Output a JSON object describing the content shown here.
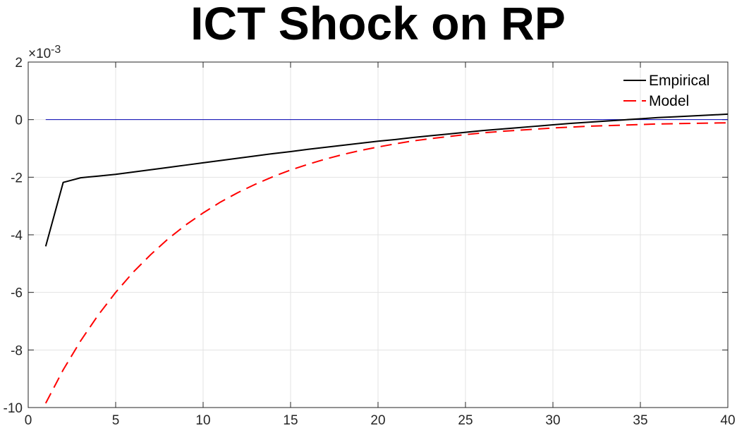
{
  "chart_data": {
    "type": "line",
    "title": "ICT Shock on RP",
    "xlabel": "",
    "ylabel": "",
    "xlim": [
      0,
      40
    ],
    "ylim": [
      -10,
      2
    ],
    "x_ticks": [
      0,
      5,
      10,
      15,
      20,
      25,
      30,
      35,
      40
    ],
    "y_ticks": [
      -10,
      -8,
      -6,
      -4,
      -2,
      0,
      2
    ],
    "y_tick_labels": [
      "-10",
      "-8",
      "-6",
      "-4",
      "-2",
      "0",
      "2"
    ],
    "y_exponent_label": "×10",
    "y_exponent_power": "-3",
    "grid": true,
    "legend_position": "top-right",
    "series": [
      {
        "name": "Empirical",
        "color": "#000000",
        "style": "solid",
        "x": [
          1,
          2,
          3,
          4,
          5,
          6,
          7,
          8,
          9,
          10,
          11,
          12,
          13,
          14,
          15,
          16,
          17,
          18,
          19,
          20,
          21,
          22,
          23,
          24,
          25,
          26,
          27,
          28,
          29,
          30,
          31,
          32,
          33,
          34,
          35,
          36,
          37,
          38,
          39,
          40
        ],
        "values": [
          -4.4,
          -2.18,
          -2.02,
          -1.96,
          -1.9,
          -1.82,
          -1.74,
          -1.66,
          -1.58,
          -1.5,
          -1.42,
          -1.34,
          -1.26,
          -1.18,
          -1.11,
          -1.03,
          -0.96,
          -0.89,
          -0.82,
          -0.75,
          -0.69,
          -0.62,
          -0.56,
          -0.5,
          -0.44,
          -0.38,
          -0.33,
          -0.28,
          -0.23,
          -0.18,
          -0.13,
          -0.09,
          -0.05,
          -0.01,
          0.03,
          0.07,
          0.1,
          0.13,
          0.16,
          0.19
        ]
      },
      {
        "name": "Model",
        "color": "#ff0000",
        "style": "dashed",
        "x": [
          1,
          2,
          3,
          4,
          5,
          6,
          7,
          8,
          9,
          10,
          11,
          12,
          13,
          14,
          15,
          16,
          17,
          18,
          19,
          20,
          21,
          22,
          23,
          24,
          25,
          26,
          27,
          28,
          29,
          30,
          31,
          32,
          33,
          34,
          35,
          36,
          37,
          38,
          39,
          40
        ],
        "values": [
          -9.85,
          -8.69,
          -7.68,
          -6.79,
          -6.0,
          -5.3,
          -4.69,
          -4.14,
          -3.66,
          -3.24,
          -2.86,
          -2.53,
          -2.24,
          -1.98,
          -1.75,
          -1.55,
          -1.37,
          -1.21,
          -1.07,
          -0.95,
          -0.84,
          -0.74,
          -0.66,
          -0.59,
          -0.52,
          -0.46,
          -0.41,
          -0.37,
          -0.33,
          -0.29,
          -0.26,
          -0.23,
          -0.21,
          -0.19,
          -0.17,
          -0.15,
          -0.14,
          -0.13,
          -0.12,
          -0.11
        ]
      },
      {
        "name": "Zero line",
        "color": "#0000b3",
        "style": "solid",
        "x": [
          1,
          40
        ],
        "values": [
          0,
          0
        ]
      }
    ]
  }
}
